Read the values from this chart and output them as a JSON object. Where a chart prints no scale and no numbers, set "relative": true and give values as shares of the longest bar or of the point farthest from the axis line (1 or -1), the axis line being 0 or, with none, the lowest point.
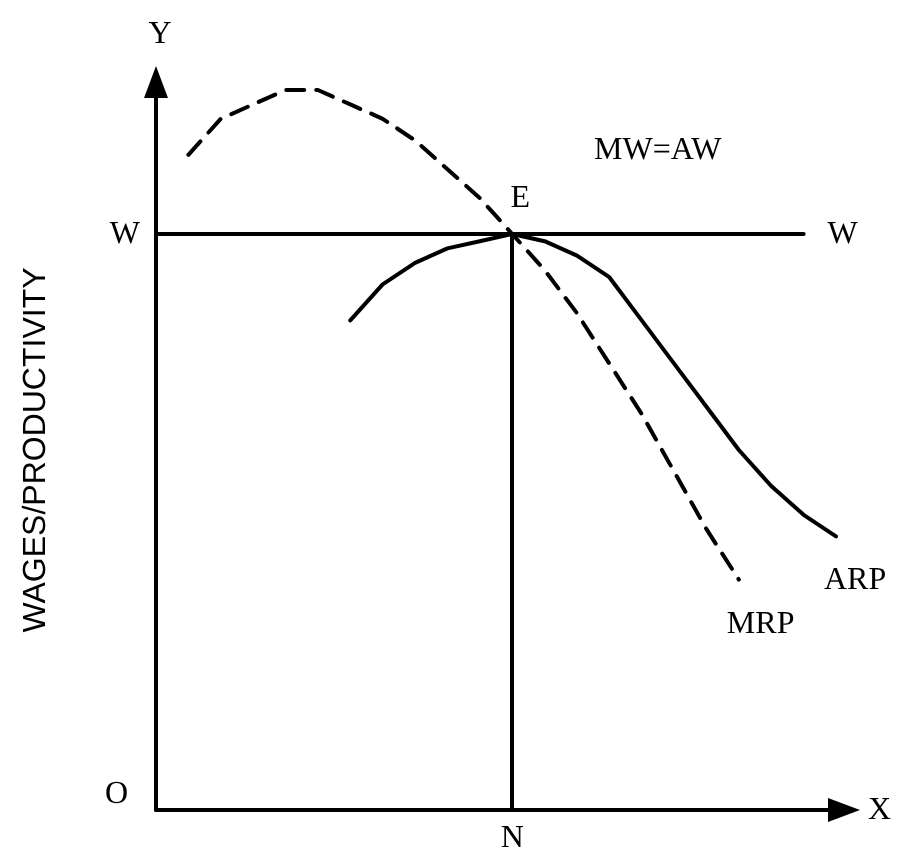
{
  "chart_data": {
    "type": "line",
    "relative": true,
    "ylabel": "WAGES/PRODUCTIVITY",
    "categories": [
      null,
      null,
      null,
      null,
      null,
      null,
      null,
      null,
      null,
      null,
      null,
      null,
      null,
      null,
      null,
      null,
      null,
      null,
      null,
      null,
      null,
      null
    ],
    "series": [
      {
        "name": "MRP",
        "color": "#000000",
        "line_style": "dashed",
        "values": [
          null,
          0.91,
          0.96,
          0.98,
          1,
          1,
          0.98,
          0.96,
          0.93,
          0.89,
          0.85,
          0.8,
          0.75,
          0.69,
          0.62,
          0.55,
          0.47,
          0.39,
          0.32,
          null,
          null,
          null
        ]
      },
      {
        "name": "ARP",
        "color": "#000000",
        "line_style": "solid",
        "values": [
          null,
          null,
          null,
          null,
          null,
          null,
          0.68,
          0.73,
          0.76,
          0.78,
          0.79,
          0.8,
          0.79,
          0.77,
          0.74,
          0.68,
          0.62,
          0.56,
          0.5,
          0.45,
          0.41,
          0.38
        ]
      },
      {
        "name": "W",
        "color": "#000000",
        "line_style": "solid",
        "values": [
          0.8,
          0.8,
          0.8,
          0.8,
          0.8,
          0.8,
          0.8,
          0.8,
          0.8,
          0.8,
          0.8,
          0.8,
          0.8,
          0.8,
          0.8,
          0.8,
          0.8,
          0.8,
          0.8,
          0.8,
          0.8,
          null
        ]
      }
    ],
    "annotations": [
      "Y",
      "X",
      "O",
      "W",
      "E",
      "MW=AW",
      "N"
    ],
    "marker": "none",
    "grid": false,
    "legend": false
  }
}
